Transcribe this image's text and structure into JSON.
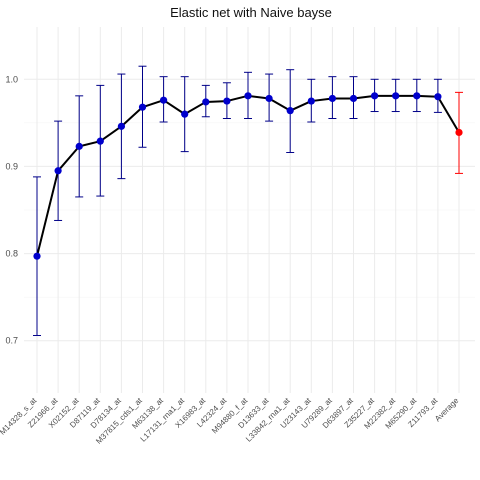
{
  "chart_data": {
    "type": "line",
    "title": "Elastic net  with Naive bayse",
    "xlabel": "",
    "ylabel": "",
    "ylim": [
      0.64,
      1.06
    ],
    "yticks": [
      0.7,
      0.8,
      0.9,
      1.0
    ],
    "ytick_labels": [
      "0.7",
      "0.8",
      "0.9",
      "1.0"
    ],
    "grid": true,
    "legend": "none",
    "series_color": "#0000cc",
    "line_color": "#000000",
    "errorbar_color": "#000088",
    "average_color": "#ff0000",
    "categories": [
      "M14328_s_at",
      "Z21966_at",
      "X02152_at",
      "D87119_at",
      "D78134_at",
      "M37815_cds1_at",
      "M63138_at",
      "L17131_rna1_at",
      "X16983_at",
      "L42324_at",
      "M94880_f_at",
      "D13633_at",
      "L33842_rna1_at",
      "U23143_at",
      "U79289_at",
      "D63897_at",
      "Z35227_at",
      "M22382_at",
      "M65290_at",
      "Z11793_at",
      "Average"
    ],
    "values": [
      0.797,
      0.895,
      0.923,
      0.929,
      0.946,
      0.968,
      0.976,
      0.96,
      0.974,
      0.975,
      0.981,
      0.978,
      0.964,
      0.975,
      0.978,
      0.978,
      0.981,
      0.981,
      0.981,
      0.98,
      0.939
    ],
    "lower": [
      0.706,
      0.838,
      0.865,
      0.866,
      0.886,
      0.922,
      0.951,
      0.917,
      0.957,
      0.955,
      0.955,
      0.952,
      0.916,
      0.951,
      0.955,
      0.955,
      0.963,
      0.963,
      0.963,
      0.962,
      0.892
    ],
    "upper": [
      0.888,
      0.952,
      0.981,
      0.993,
      1.006,
      1.015,
      1.003,
      1.003,
      0.993,
      0.996,
      1.008,
      1.006,
      1.011,
      1.0,
      1.003,
      1.003,
      1.0,
      1.0,
      1.0,
      1.0,
      0.985
    ]
  }
}
